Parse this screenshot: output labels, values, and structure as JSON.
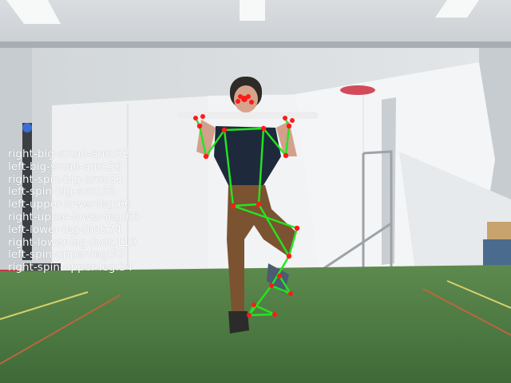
{
  "angle_readout": [
    {
      "name": "right-big-small-arm",
      "value": 32
    },
    {
      "name": "left-big-small-arm",
      "value": 36
    },
    {
      "name": "right-spin-big-arm",
      "value": 31
    },
    {
      "name": "left-spin-big-arm",
      "value": 35
    },
    {
      "name": "left-upper-lower-leg",
      "value": 66
    },
    {
      "name": "right-upper-lower-leg",
      "value": 69
    },
    {
      "name": "left-lower-leg-foot",
      "value": 74
    },
    {
      "name": "right-lower-leg-foot",
      "value": 119
    },
    {
      "name": "left-spin-upper-leg",
      "value": 53
    },
    {
      "name": "right-spin-upper-leg",
      "value": 34
    }
  ],
  "colors": {
    "skeleton_line": "#22e61f",
    "keypoint": "#ff1a1a",
    "readout_text": "#ffffff"
  }
}
